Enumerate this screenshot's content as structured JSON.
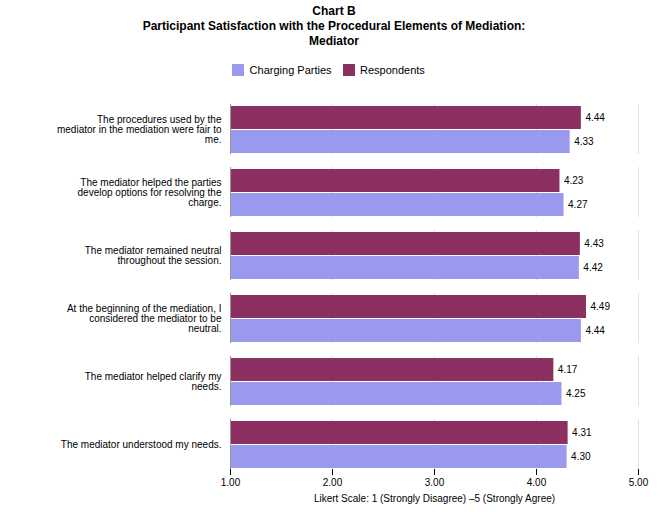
{
  "chart_data": {
    "type": "bar",
    "orientation": "horizontal",
    "title": "Chart B\nParticipant Satisfaction with the Procedural Elements of Mediation:\nMediator",
    "xlabel": "Likert Scale: 1 (Strongly Disagree) –5 (Strongly Agree)",
    "categories": [
      "The mediator understood my needs.",
      "The mediator helped clarify my\nneeds.",
      "At the beginning of the mediation, I\nconsidered the mediator to be\nneutral.",
      "The mediator remained neutral\nthroughout the session.",
      "The mediator helped the parties\ndevelop options for resolving the\ncharge.",
      "The procedures used by the\nmediator in the mediation were fair to\nme."
    ],
    "series": [
      {
        "name": "Charging Parties",
        "color": "#9999EE",
        "values": [
          4.3,
          4.25,
          4.44,
          4.42,
          4.27,
          4.33
        ],
        "value_labels": [
          "4.30",
          "4.25",
          "4.44",
          "4.42",
          "4.27",
          "4.33"
        ]
      },
      {
        "name": "Respondents",
        "color": "#8B3060",
        "values": [
          4.31,
          4.17,
          4.49,
          4.43,
          4.23,
          4.44
        ],
        "value_labels": [
          "4.31",
          "4.17",
          "4.49",
          "4.43",
          "4.23",
          "4.44"
        ]
      }
    ],
    "xlim": [
      1.0,
      5.0
    ],
    "xticks": [
      {
        "value": 1.0,
        "label": "1.00"
      },
      {
        "value": 2.0,
        "label": "2.00"
      },
      {
        "value": 3.0,
        "label": "3.00"
      },
      {
        "value": 4.0,
        "label": "4.00"
      },
      {
        "value": 5.0,
        "label": "5.00"
      }
    ],
    "grid": true,
    "legend": "top",
    "data_labels": true
  }
}
